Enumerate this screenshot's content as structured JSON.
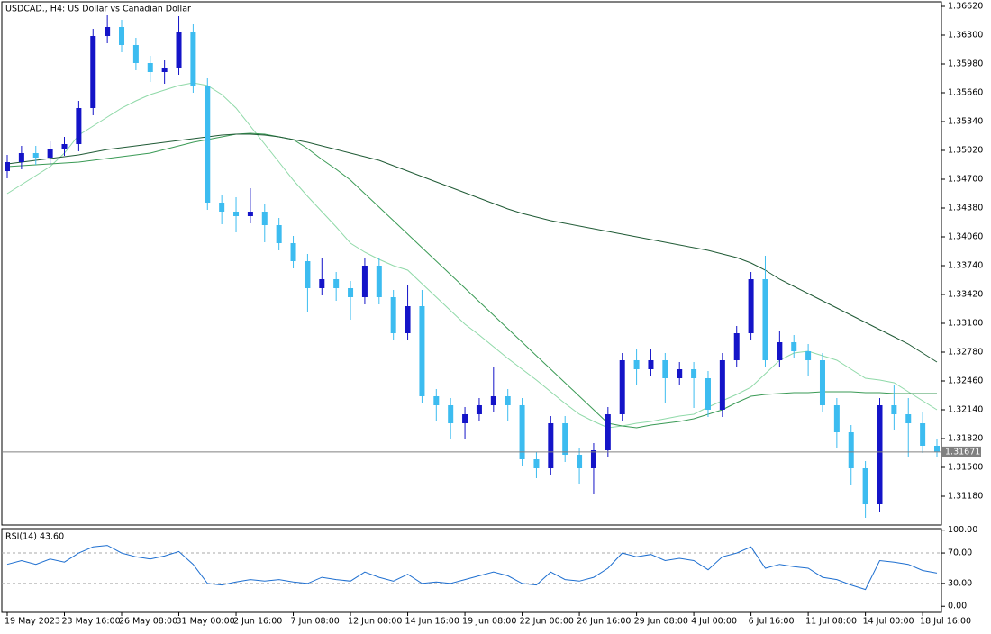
{
  "chart_data": [
    {
      "type": "candlestick",
      "title": "USDCAD., H4:  US Dollar vs Canadian Dollar",
      "categories": [
        "19 May 2023",
        null,
        null,
        null,
        "23 May 16:00",
        null,
        null,
        null,
        "26 May 08:00",
        null,
        null,
        null,
        "31 May 00:00",
        null,
        null,
        null,
        "2 Jun 16:00",
        null,
        null,
        null,
        "7 Jun 08:00",
        null,
        null,
        null,
        "12 Jun 00:00",
        null,
        null,
        null,
        "14 Jun 16:00",
        null,
        null,
        null,
        "19 Jun 08:00",
        null,
        null,
        null,
        "22 Jun 00:00",
        null,
        null,
        null,
        "26 Jun 16:00",
        null,
        null,
        null,
        "29 Jun 08:00",
        null,
        null,
        null,
        "4 Jul 00:00",
        null,
        null,
        null,
        "6 Jul 16:00",
        null,
        null,
        null,
        "11 Jul 08:00",
        null,
        null,
        null,
        "14 Jul 00:00",
        null,
        null,
        null,
        "18 Jul 16:00",
        null
      ],
      "open": [
        1.3479,
        1.3489,
        1.3499,
        1.3494,
        1.3504,
        1.3509,
        1.3549,
        1.3629,
        1.3639,
        1.3619,
        1.3599,
        1.3589,
        1.3594,
        1.3634,
        1.3574,
        1.3444,
        1.3434,
        1.3429,
        1.3434,
        1.3419,
        1.3399,
        1.3379,
        1.3349,
        1.3359,
        1.3349,
        1.3339,
        1.3374,
        1.3339,
        1.3299,
        1.3329,
        1.3229,
        1.3219,
        1.3199,
        1.3209,
        1.3219,
        1.3229,
        1.3219,
        1.3159,
        1.3149,
        1.3199,
        1.3164,
        1.3149,
        1.3169,
        1.3209,
        1.3269,
        1.3259,
        1.3269,
        1.3249,
        1.3259,
        1.3249,
        1.3214,
        1.3269,
        1.3299,
        1.3359,
        1.3269,
        1.3289,
        1.3279,
        1.3269,
        1.3219,
        1.3189,
        1.3149,
        1.3109,
        1.3219,
        1.3209,
        1.3199,
        1.3174
      ],
      "high": [
        1.3497,
        1.3507,
        1.3507,
        1.3512,
        1.3517,
        1.3557,
        1.3637,
        1.3652,
        1.3647,
        1.3627,
        1.3607,
        1.3602,
        1.3651,
        1.3642,
        1.3582,
        1.3452,
        1.345,
        1.346,
        1.3442,
        1.3427,
        1.3407,
        1.3387,
        1.3382,
        1.3367,
        1.3357,
        1.3382,
        1.3382,
        1.3347,
        1.3352,
        1.3347,
        1.3237,
        1.3227,
        1.3217,
        1.3227,
        1.3262,
        1.3237,
        1.3227,
        1.3167,
        1.3207,
        1.3207,
        1.3172,
        1.3177,
        1.3217,
        1.3277,
        1.3282,
        1.3282,
        1.3277,
        1.3267,
        1.3267,
        1.3257,
        1.3277,
        1.3307,
        1.3367,
        1.3385,
        1.3302,
        1.3297,
        1.3287,
        1.3277,
        1.3227,
        1.3197,
        1.3157,
        1.3227,
        1.3242,
        1.3227,
        1.3212,
        1.3182
      ],
      "low": [
        1.3471,
        1.3481,
        1.3486,
        1.3486,
        1.3496,
        1.3501,
        1.3541,
        1.3621,
        1.3611,
        1.3591,
        1.3578,
        1.3576,
        1.3586,
        1.3566,
        1.3436,
        1.342,
        1.3411,
        1.3421,
        1.34,
        1.3391,
        1.3371,
        1.3322,
        1.3341,
        1.3335,
        1.3314,
        1.3331,
        1.3331,
        1.3291,
        1.3291,
        1.3221,
        1.3201,
        1.3181,
        1.3181,
        1.3201,
        1.3211,
        1.3201,
        1.3151,
        1.3138,
        1.3141,
        1.3156,
        1.3132,
        1.3121,
        1.3161,
        1.3201,
        1.3241,
        1.3251,
        1.3221,
        1.3241,
        1.3216,
        1.3206,
        1.3206,
        1.3261,
        1.3291,
        1.3261,
        1.3261,
        1.3271,
        1.3251,
        1.3211,
        1.3171,
        1.3131,
        1.3094,
        1.3101,
        1.3191,
        1.3161,
        1.3166,
        1.3161
      ],
      "close": [
        1.3489,
        1.3499,
        1.3494,
        1.3504,
        1.3509,
        1.3549,
        1.3629,
        1.3639,
        1.3619,
        1.3599,
        1.3589,
        1.3594,
        1.3634,
        1.3574,
        1.3444,
        1.3434,
        1.3429,
        1.3434,
        1.3419,
        1.3399,
        1.3379,
        1.3349,
        1.3359,
        1.3349,
        1.3339,
        1.3374,
        1.3339,
        1.3299,
        1.3329,
        1.3229,
        1.3219,
        1.3199,
        1.3209,
        1.3219,
        1.3229,
        1.3219,
        1.3159,
        1.3149,
        1.3199,
        1.3164,
        1.3149,
        1.3169,
        1.3209,
        1.3269,
        1.3259,
        1.3269,
        1.3249,
        1.3259,
        1.3249,
        1.3214,
        1.3269,
        1.3299,
        1.3359,
        1.3269,
        1.3289,
        1.3279,
        1.3269,
        1.3219,
        1.3189,
        1.3149,
        1.3109,
        1.3219,
        1.3209,
        1.3199,
        1.3174,
        1.3167
      ],
      "up_color": "#1414c8",
      "down_color": "#3cbcf0",
      "series": [
        {
          "color": "#8fd9a8",
          "values": [
            1.3454,
            1.3464,
            1.3474,
            1.3484,
            1.3499,
            1.3519,
            1.3529,
            1.3539,
            1.3549,
            1.3557,
            1.3564,
            1.3569,
            1.3574,
            1.3577,
            1.3574,
            1.3564,
            1.3549,
            1.3529,
            1.3509,
            1.3489,
            1.3469,
            1.3451,
            1.3434,
            1.3417,
            1.3399,
            1.3389,
            1.3381,
            1.3374,
            1.3369,
            1.3354,
            1.3339,
            1.3324,
            1.3309,
            1.3297,
            1.3284,
            1.3271,
            1.3259,
            1.3247,
            1.3234,
            1.3221,
            1.3209,
            1.3201,
            1.3194,
            1.3196,
            1.3199,
            1.3201,
            1.3204,
            1.3207,
            1.3209,
            1.3217,
            1.3224,
            1.3231,
            1.3239,
            1.3254,
            1.3269,
            1.3277,
            1.3279,
            1.3274,
            1.3269,
            1.3259,
            1.3249,
            1.3247,
            1.3244,
            1.3234,
            1.3224,
            1.3214
          ]
        },
        {
          "color": "#3a9a55",
          "values": [
            1.3484,
            1.3485,
            1.3486,
            1.3487,
            1.3488,
            1.3489,
            1.3491,
            1.3493,
            1.3495,
            1.3497,
            1.3499,
            1.3503,
            1.3507,
            1.3511,
            1.3514,
            1.3517,
            1.352,
            1.3521,
            1.352,
            1.3517,
            1.3514,
            1.3504,
            1.3492,
            1.3481,
            1.3469,
            1.3454,
            1.3439,
            1.3424,
            1.3409,
            1.3394,
            1.3379,
            1.3364,
            1.3349,
            1.3334,
            1.3319,
            1.3304,
            1.3289,
            1.3274,
            1.3259,
            1.3244,
            1.3229,
            1.3214,
            1.3199,
            1.3196,
            1.3194,
            1.3197,
            1.3199,
            1.3201,
            1.3204,
            1.3209,
            1.3214,
            1.3222,
            1.3229,
            1.3231,
            1.3232,
            1.3233,
            1.3233,
            1.3234,
            1.3234,
            1.3234,
            1.3233,
            1.3233,
            1.3232,
            1.3232,
            1.3232,
            1.3232
          ]
        },
        {
          "color": "#1f5a35",
          "values": [
            1.3487,
            1.3489,
            1.3491,
            1.3493,
            1.3495,
            1.3497,
            1.35,
            1.3503,
            1.3505,
            1.3507,
            1.3509,
            1.3511,
            1.3513,
            1.3515,
            1.3517,
            1.3519,
            1.352,
            1.352,
            1.3519,
            1.3517,
            1.3514,
            1.3511,
            1.3507,
            1.3503,
            1.3499,
            1.3495,
            1.3491,
            1.3485,
            1.3479,
            1.3473,
            1.3467,
            1.3461,
            1.3455,
            1.3449,
            1.3443,
            1.3437,
            1.3432,
            1.3428,
            1.3424,
            1.3421,
            1.3418,
            1.3415,
            1.3412,
            1.3409,
            1.3406,
            1.3403,
            1.34,
            1.3397,
            1.3394,
            1.3391,
            1.3387,
            1.3383,
            1.3377,
            1.3369,
            1.3359,
            1.3351,
            1.3343,
            1.3335,
            1.3327,
            1.3319,
            1.3311,
            1.3303,
            1.3295,
            1.3287,
            1.3277,
            1.3267
          ]
        }
      ],
      "current_price": 1.31671,
      "ylim": [
        1.3086,
        1.3667
      ],
      "yticks": [
        {
          "value": 1.3662,
          "label": "1.36620"
        },
        {
          "value": 1.363,
          "label": "1.36300"
        },
        {
          "value": 1.3598,
          "label": "1.35980"
        },
        {
          "value": 1.3566,
          "label": "1.35660"
        },
        {
          "value": 1.3534,
          "label": "1.35340"
        },
        {
          "value": 1.3502,
          "label": "1.35020"
        },
        {
          "value": 1.347,
          "label": "1.34700"
        },
        {
          "value": 1.3438,
          "label": "1.34380"
        },
        {
          "value": 1.3406,
          "label": "1.34060"
        },
        {
          "value": 1.3374,
          "label": "1.33740"
        },
        {
          "value": 1.3342,
          "label": "1.33420"
        },
        {
          "value": 1.331,
          "label": "1.33100"
        },
        {
          "value": 1.3278,
          "label": "1.32780"
        },
        {
          "value": 1.3246,
          "label": "1.32460"
        },
        {
          "value": 1.3214,
          "label": "1.32140"
        },
        {
          "value": 1.3182,
          "label": "1.31820"
        },
        {
          "value": 1.315,
          "label": "1.31500"
        },
        {
          "value": 1.3118,
          "label": "1.31180"
        }
      ]
    },
    {
      "type": "line",
      "title": "RSI(14) 43.60",
      "color": "#1e6fd0",
      "values": [
        55,
        60,
        55,
        62,
        58,
        70,
        78,
        80,
        70,
        65,
        62,
        66,
        72,
        55,
        30,
        28,
        32,
        35,
        33,
        35,
        32,
        30,
        38,
        35,
        33,
        45,
        38,
        33,
        42,
        30,
        32,
        30,
        35,
        40,
        45,
        40,
        30,
        28,
        45,
        35,
        33,
        38,
        50,
        70,
        65,
        68,
        60,
        63,
        60,
        48,
        65,
        70,
        78,
        50,
        55,
        52,
        50,
        38,
        35,
        28,
        22,
        60,
        58,
        55,
        47,
        43.6
      ],
      "ylim": [
        -8,
        102
      ],
      "yticks": [
        {
          "value": 100,
          "label": "100.00"
        },
        {
          "value": 70,
          "label": "70.00"
        },
        {
          "value": 30,
          "label": "30.00"
        },
        {
          "value": 0,
          "label": "0.00"
        }
      ],
      "levels": [
        70,
        30
      ]
    }
  ]
}
